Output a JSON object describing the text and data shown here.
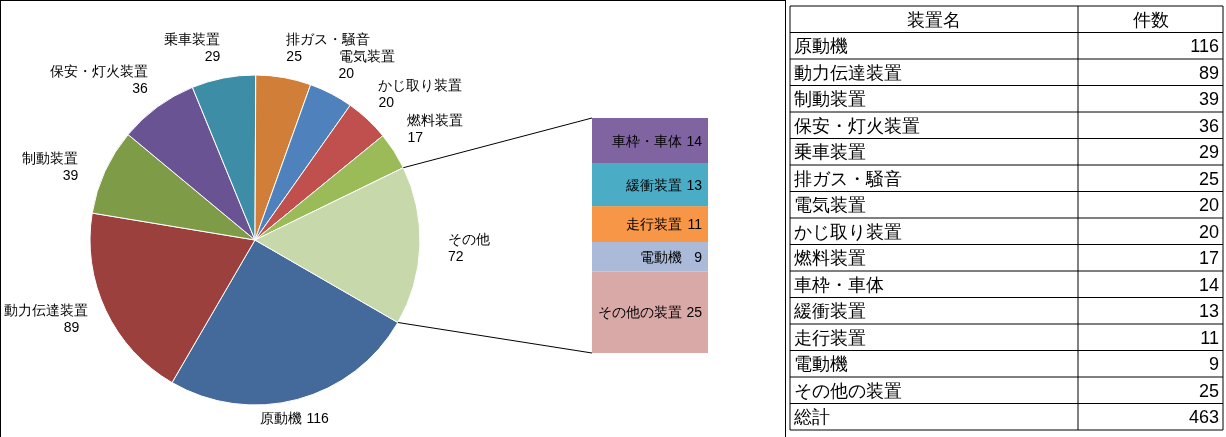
{
  "chart_data": [
    {
      "type": "pie",
      "categories": [
        "原動機",
        "動力伝達装置",
        "制動装置",
        "保安・灯火装置",
        "乗車装置",
        "排ガス・騒音",
        "電気装置",
        "かじ取り装置",
        "燃料装置",
        "その他"
      ],
      "values": [
        116,
        89,
        39,
        36,
        29,
        25,
        20,
        20,
        17,
        72
      ],
      "colors": [
        "#44699b",
        "#9c403e",
        "#7e9b48",
        "#6a5392",
        "#3e8da6",
        "#d17f38",
        "#4f81bd",
        "#c0504d",
        "#9bbb59",
        "#c7d8aa"
      ],
      "data_labels": true
    },
    {
      "type": "bar",
      "stacked": true,
      "categories": [
        null
      ],
      "data_labels": true,
      "series": [
        {
          "name": "その他の装置",
          "color": "#d9a9a8",
          "values": [
            25
          ]
        },
        {
          "name": "電動機",
          "color": "#aabad8",
          "values": [
            9
          ]
        },
        {
          "name": "走行装置",
          "color": "#f79646",
          "values": [
            11
          ]
        },
        {
          "name": "緩衝装置",
          "color": "#4bacc6",
          "values": [
            13
          ]
        },
        {
          "name": "車枠・車体",
          "color": "#8064a2",
          "values": [
            14
          ]
        }
      ]
    },
    {
      "type": "other",
      "data_labels": true,
      "annotations": [
        "装置名",
        "件数"
      ],
      "categories": [
        "原動機",
        "動力伝達装置",
        "制動装置",
        "保安・灯火装置",
        "乗車装置",
        "排ガス・騒音",
        "電気装置",
        "かじ取り装置",
        "燃料装置",
        "車枠・車体",
        "緩衝装置",
        "走行装置",
        "電動機",
        "その他の装置",
        "総計"
      ],
      "values": [
        116,
        89,
        39,
        36,
        29,
        25,
        20,
        20,
        17,
        14,
        13,
        11,
        9,
        25,
        463
      ]
    }
  ]
}
